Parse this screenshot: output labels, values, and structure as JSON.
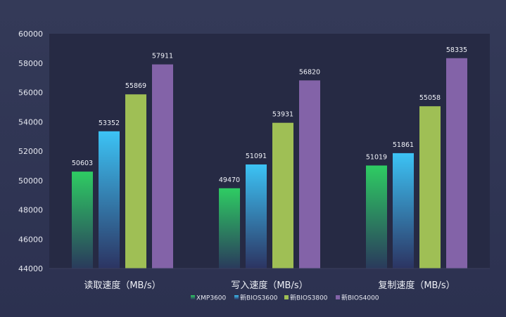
{
  "chart_data": {
    "type": "bar",
    "categories": [
      "读取速度（MB/s）",
      "写入速度（MB/s）",
      "复制速度（MB/s）"
    ],
    "series": [
      {
        "name": "XMP3600",
        "values": [
          50603,
          49470,
          51019
        ],
        "color": "#2ecc63",
        "gradient_to": "#2a3a5c"
      },
      {
        "name": "新BIOS3600",
        "values": [
          53352,
          51091,
          51861
        ],
        "color": "#3cc3f5",
        "gradient_to": "#2c3462"
      },
      {
        "name": "新BIOS3800",
        "values": [
          55869,
          53931,
          55058
        ],
        "color": "#9fbf55"
      },
      {
        "name": "新BIOS4000",
        "values": [
          57911,
          56820,
          58335
        ],
        "color": "#8363a8"
      }
    ],
    "y_ticks": [
      "44000",
      "46000",
      "48000",
      "50000",
      "52000",
      "54000",
      "56000",
      "58000",
      "60000"
    ],
    "ylim": [
      44000,
      60000
    ],
    "grid": false,
    "legend_position": "bottom-center",
    "plot_background": "#262a44"
  }
}
